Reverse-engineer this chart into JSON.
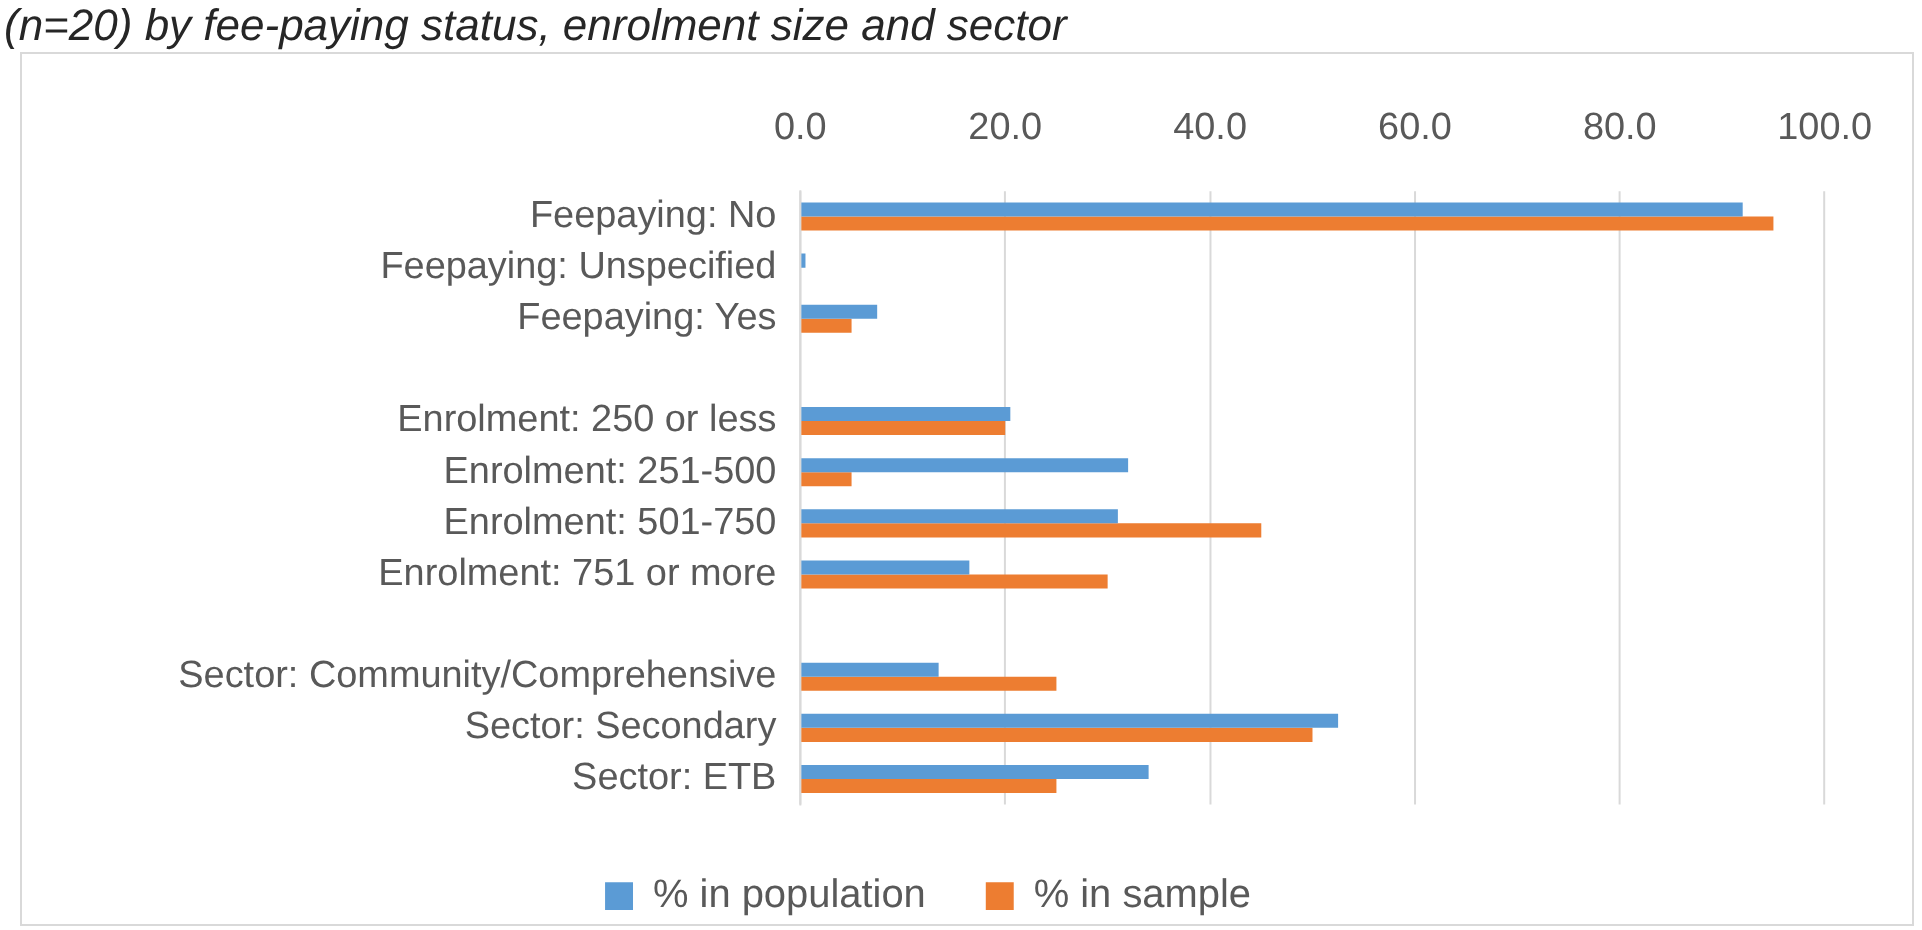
{
  "chart_data": {
    "type": "bar",
    "title": "(n=20) by fee-paying status, enrolment size and sector",
    "orientation": "horizontal",
    "categories": [
      "Feepaying: No",
      "Feepaying: Unspecified",
      "Feepaying: Yes",
      null,
      "Enrolment: 250 or less",
      "Enrolment: 251-500",
      "Enrolment: 501-750",
      "Enrolment: 751 or more",
      null,
      "Sector: Community/Comprehensive",
      "Sector: Secondary",
      "Sector: ETB"
    ],
    "series": [
      {
        "name": "% in population",
        "color": "#5b9bd5",
        "values": [
          92,
          0.5,
          7.5,
          null,
          20.5,
          32,
          31,
          16.5,
          null,
          13.5,
          52.5,
          34
        ]
      },
      {
        "name": "% in sample",
        "color": "#ed7d31",
        "values": [
          95,
          0,
          5,
          null,
          20,
          5,
          45,
          30,
          null,
          25,
          50,
          25
        ]
      }
    ],
    "xlim": [
      0,
      100
    ],
    "xticks": [
      {
        "value": 0,
        "label": "0.0"
      },
      {
        "value": 20,
        "label": "20.0"
      },
      {
        "value": 40,
        "label": "40.0"
      },
      {
        "value": 60,
        "label": "60.0"
      },
      {
        "value": 80,
        "label": "80.0"
      },
      {
        "value": 100,
        "label": "100.0"
      }
    ],
    "grid": "x",
    "legend": "bottom"
  }
}
